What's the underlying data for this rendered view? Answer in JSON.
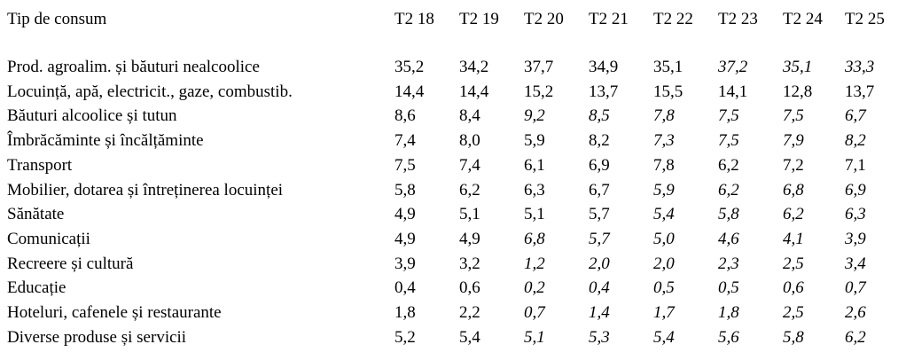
{
  "header": {
    "label": "Tip de consum",
    "columns": [
      "T2 18",
      "T2 19",
      "T2 20",
      "T2 21",
      "T2 22",
      "T2 23",
      "T2 24",
      "T2 25"
    ]
  },
  "rows": [
    {
      "label": "Prod. agroalim. și băuturi nealcoolice",
      "values": [
        "35,2",
        "34,2",
        "37,7",
        "34,9",
        "35,1",
        "37,2",
        "35,1",
        "33,3"
      ],
      "italic": [
        0,
        0,
        0,
        0,
        0,
        1,
        1,
        1
      ]
    },
    {
      "label": "Locuință, apă, electricit., gaze, combustib.",
      "values": [
        "14,4",
        "14,4",
        "15,2",
        "13,7",
        "15,5",
        "14,1",
        "12,8",
        "13,7"
      ],
      "italic": [
        0,
        0,
        0,
        0,
        0,
        0,
        0,
        0
      ]
    },
    {
      "label": "Băuturi alcoolice și tutun",
      "values": [
        "8,6",
        "8,4",
        "9,2",
        "8,5",
        "7,8",
        "7,5",
        "7,5",
        "6,7"
      ],
      "italic": [
        0,
        0,
        1,
        1,
        1,
        1,
        1,
        1
      ]
    },
    {
      "label": "Îmbrăcăminte și încălțăminte",
      "values": [
        "7,4",
        "8,0",
        "5,9",
        "8,2",
        "7,3",
        "7,5",
        "7,9",
        "8,2"
      ],
      "italic": [
        0,
        0,
        0,
        0,
        1,
        1,
        1,
        1
      ]
    },
    {
      "label": "Transport",
      "values": [
        "7,5",
        "7,4",
        "6,1",
        "6,9",
        "7,8",
        "6,2",
        "7,2",
        "7,1"
      ],
      "italic": [
        0,
        0,
        0,
        0,
        0,
        0,
        0,
        0
      ]
    },
    {
      "label": "Mobilier, dotarea și întreținerea locuinței",
      "values": [
        "5,8",
        "6,2",
        "6,3",
        "6,7",
        "5,9",
        "6,2",
        "6,8",
        "6,9"
      ],
      "italic": [
        0,
        0,
        0,
        0,
        1,
        1,
        1,
        1
      ]
    },
    {
      "label": "Sănătate",
      "values": [
        "4,9",
        "5,1",
        "5,1",
        "5,7",
        "5,4",
        "5,8",
        "6,2",
        "6,3"
      ],
      "italic": [
        0,
        0,
        0,
        0,
        1,
        1,
        1,
        1
      ]
    },
    {
      "label": "Comunicații",
      "values": [
        "4,9",
        "4,9",
        "6,8",
        "5,7",
        "5,0",
        "4,6",
        "4,1",
        "3,9"
      ],
      "italic": [
        0,
        0,
        1,
        1,
        1,
        1,
        1,
        1
      ]
    },
    {
      "label": "Recreere și cultură",
      "values": [
        "3,9",
        "3,2",
        "1,2",
        "2,0",
        "2,0",
        "2,3",
        "2,5",
        "3,4"
      ],
      "italic": [
        0,
        0,
        1,
        1,
        1,
        1,
        1,
        1
      ]
    },
    {
      "label": "Educație",
      "values": [
        "0,4",
        "0,6",
        "0,2",
        "0,4",
        "0,5",
        "0,5",
        "0,6",
        "0,7"
      ],
      "italic": [
        0,
        0,
        1,
        1,
        1,
        1,
        1,
        1
      ]
    },
    {
      "label": "Hoteluri, cafenele și restaurante",
      "values": [
        "1,8",
        "2,2",
        "0,7",
        "1,4",
        "1,7",
        "1,8",
        "2,5",
        "2,6"
      ],
      "italic": [
        0,
        0,
        1,
        1,
        1,
        1,
        1,
        1
      ]
    },
    {
      "label": "Diverse produse și servicii",
      "values": [
        "5,2",
        "5,4",
        "5,1",
        "5,3",
        "5,4",
        "5,6",
        "5,8",
        "6,2"
      ],
      "italic": [
        0,
        0,
        1,
        1,
        1,
        1,
        1,
        1
      ]
    }
  ]
}
